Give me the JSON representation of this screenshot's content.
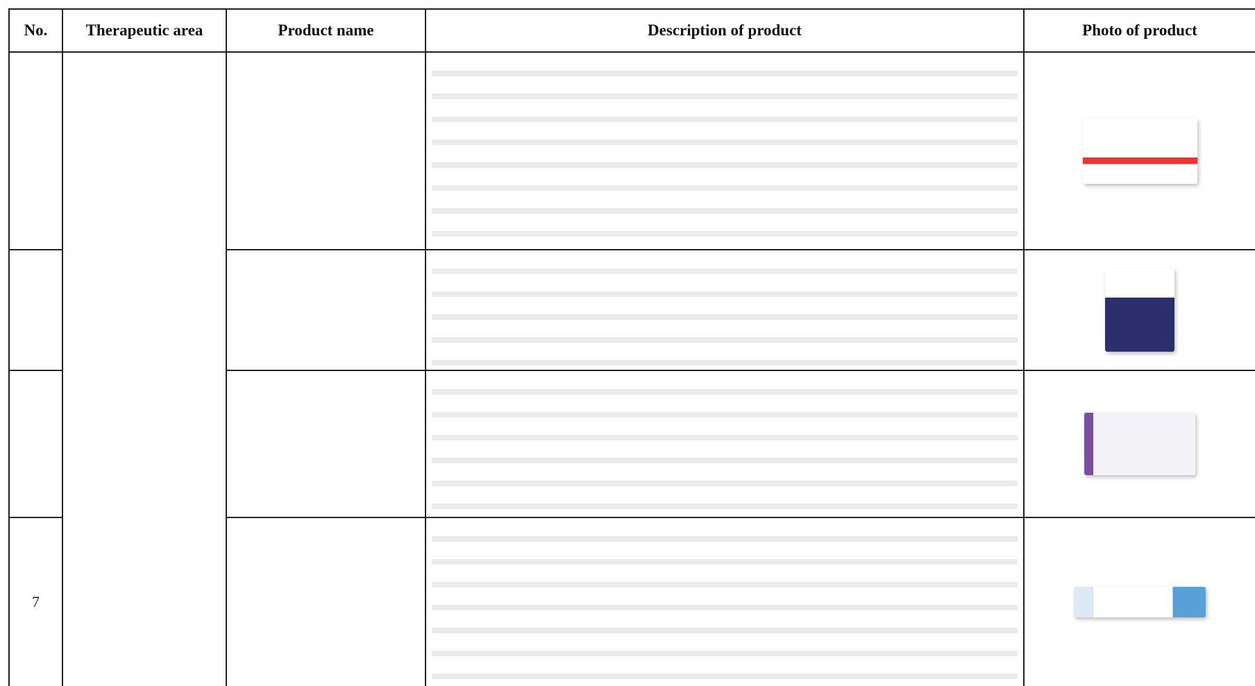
{
  "table": {
    "header": [
      "No.",
      "Therapeutic area",
      "Product name",
      "Description of product",
      "Photo of product"
    ],
    "rows": [
      {
        "no": null
      },
      {
        "no": null
      },
      {
        "no": null
      },
      {
        "no": "7"
      }
    ]
  }
}
